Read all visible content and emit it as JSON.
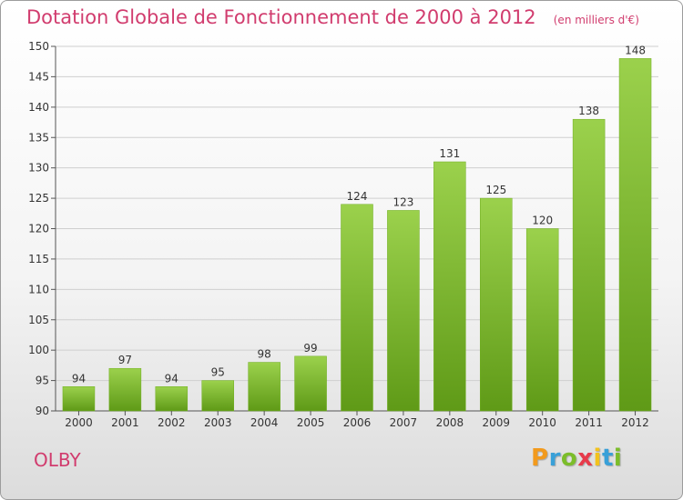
{
  "chart_data": {
    "type": "bar",
    "title": "Dotation Globale de Fonctionnement de 2000 à 2012",
    "unit_note": "(en milliers d'€)",
    "categories": [
      "2000",
      "2001",
      "2002",
      "2003",
      "2004",
      "2005",
      "2006",
      "2007",
      "2008",
      "2009",
      "2010",
      "2011",
      "2012"
    ],
    "values": [
      94,
      97,
      94,
      95,
      98,
      99,
      124,
      123,
      131,
      125,
      120,
      138,
      148
    ],
    "ylim": [
      90,
      150
    ],
    "yticks": [
      90,
      95,
      100,
      105,
      110,
      115,
      120,
      125,
      130,
      135,
      140,
      145,
      150
    ],
    "xlabel": "",
    "ylabel": "",
    "grid": true,
    "bar_color_top": "#9bd14c",
    "bar_color_bottom": "#5f9a17",
    "title_color": "#d13c6e"
  },
  "town_name": "OLBY",
  "logo": {
    "letters": [
      "P",
      "r",
      "o",
      "x",
      "i",
      "t",
      "i"
    ],
    "colors": [
      "#f29a1d",
      "#39a0d8",
      "#7cbd2a",
      "#e73a4a",
      "#f2c21d",
      "#39a0d8",
      "#7cbd2a"
    ]
  }
}
